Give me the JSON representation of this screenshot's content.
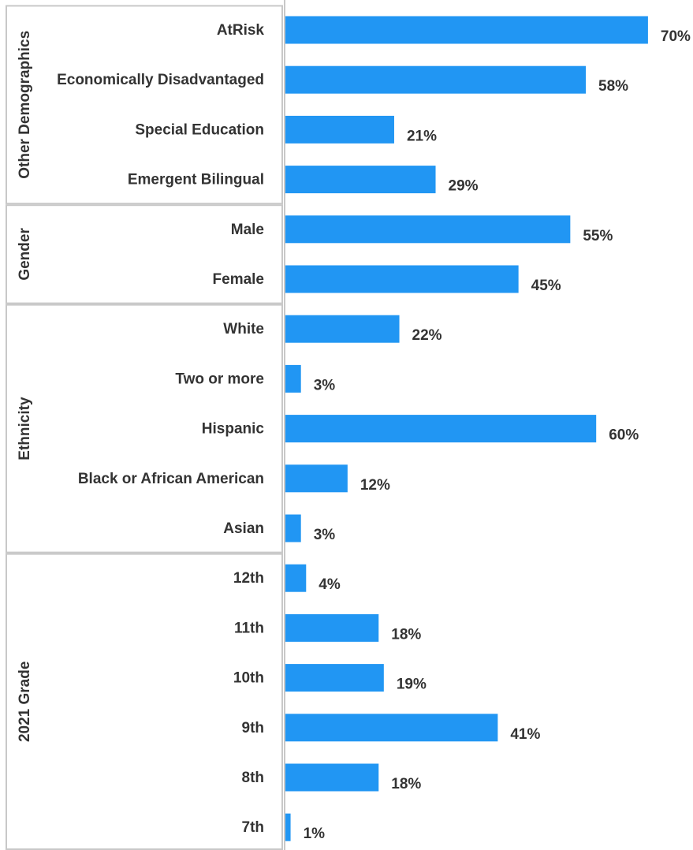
{
  "chart_data": {
    "type": "bar",
    "orientation": "horizontal",
    "bar_color": "#2196F3",
    "groups": [
      {
        "name": "Other Demographics",
        "categories": [
          "AtRisk",
          "Economically Disadvantaged",
          "Special Education",
          "Emergent Bilingual"
        ],
        "values": [
          70,
          58,
          21,
          29
        ],
        "labels": [
          "70%",
          "58%",
          "21%",
          "29%"
        ]
      },
      {
        "name": "Gender",
        "categories": [
          "Male",
          "Female"
        ],
        "values": [
          55,
          45
        ],
        "labels": [
          "55%",
          "45%"
        ]
      },
      {
        "name": "Ethnicity",
        "categories": [
          "White",
          "Two or more",
          "Hispanic",
          "Black or African American",
          "Asian"
        ],
        "values": [
          22,
          3,
          60,
          12,
          3
        ],
        "labels": [
          "22%",
          "3%",
          "60%",
          "12%",
          "3%"
        ]
      },
      {
        "name": "2021 Grade",
        "categories": [
          "12th",
          "11th",
          "10th",
          "9th",
          "8th",
          "7th"
        ],
        "values": [
          4,
          18,
          19,
          41,
          18,
          1
        ],
        "labels": [
          "4%",
          "18%",
          "19%",
          "41%",
          "18%",
          "1%"
        ]
      }
    ]
  }
}
